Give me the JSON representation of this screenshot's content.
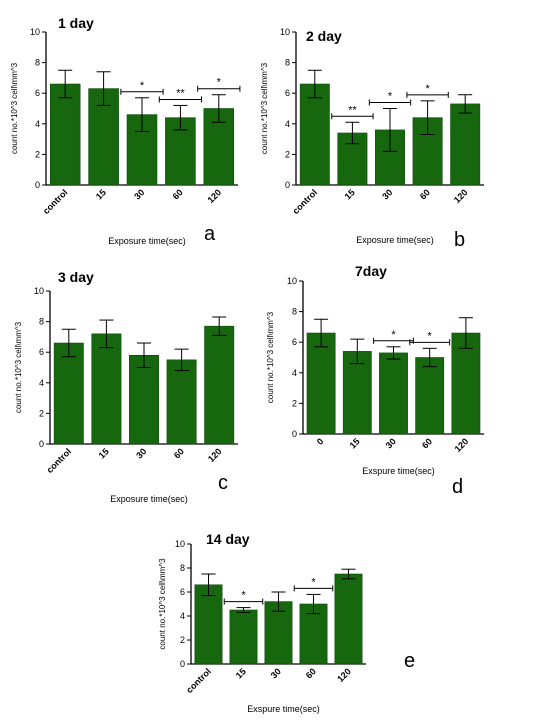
{
  "colors": {
    "bar": "#17670f",
    "bar_edge": "#0b4a08",
    "axis": "#000000"
  },
  "chart_data": [
    {
      "type": "bar",
      "title": "1 day",
      "panel_label": "a",
      "categories": [
        "control",
        "15",
        "30",
        "60",
        "120"
      ],
      "values": [
        6.6,
        6.3,
        4.6,
        4.4,
        5.0
      ],
      "errors": [
        0.9,
        1.1,
        1.1,
        0.8,
        0.9
      ],
      "significance": [
        {
          "cat": 2,
          "mark": "*"
        },
        {
          "cat": 3,
          "mark": "**"
        },
        {
          "cat": 4,
          "mark": "*"
        }
      ],
      "ylim": [
        0,
        10
      ],
      "yticks": [
        0,
        2,
        4,
        6,
        8,
        10
      ],
      "ylabel": "count no.*10^3 cell\\mm^3",
      "xlabel": "Exposure time(sec)"
    },
    {
      "type": "bar",
      "title": "2 day",
      "panel_label": "b",
      "categories": [
        "control",
        "15",
        "30",
        "60",
        "120"
      ],
      "values": [
        6.6,
        3.4,
        3.6,
        4.4,
        5.3
      ],
      "errors": [
        0.9,
        0.7,
        1.4,
        1.1,
        0.6
      ],
      "significance": [
        {
          "cat": 1,
          "mark": "**"
        },
        {
          "cat": 2,
          "mark": "*"
        },
        {
          "cat": 3,
          "mark": "*"
        }
      ],
      "ylim": [
        0,
        10
      ],
      "yticks": [
        0,
        2,
        4,
        6,
        8,
        10
      ],
      "ylabel": "count no.*10^3 cell\\mm^3",
      "xlabel": "Exposure time(sec)"
    },
    {
      "type": "bar",
      "title": "3 day",
      "panel_label": "c",
      "categories": [
        "control",
        "15",
        "30",
        "60",
        "120"
      ],
      "values": [
        6.6,
        7.2,
        5.8,
        5.5,
        7.7
      ],
      "errors": [
        0.9,
        0.9,
        0.8,
        0.7,
        0.6
      ],
      "significance": [],
      "ylim": [
        0,
        10
      ],
      "yticks": [
        0,
        2,
        4,
        6,
        8,
        10
      ],
      "ylabel": "count no.*10^3 cell\\mm^3",
      "xlabel": "Exposure time(sec)"
    },
    {
      "type": "bar",
      "title": "7day",
      "panel_label": "d",
      "categories": [
        "0",
        "15",
        "30",
        "60",
        "120"
      ],
      "values": [
        6.6,
        5.4,
        5.3,
        5.0,
        6.6
      ],
      "errors": [
        0.9,
        0.8,
        0.4,
        0.6,
        1.0
      ],
      "significance": [
        {
          "cat": 2,
          "mark": "*"
        },
        {
          "cat": 3,
          "mark": "*"
        }
      ],
      "ylim": [
        0,
        10
      ],
      "yticks": [
        0,
        2,
        4,
        6,
        8,
        10
      ],
      "ylabel": "count no.*10^3 cell\\mm^3",
      "xlabel": "Exspure time(sec)"
    },
    {
      "type": "bar",
      "title": "14 day",
      "panel_label": "e",
      "categories": [
        "control",
        "15",
        "30",
        "60",
        "120"
      ],
      "values": [
        6.6,
        4.5,
        5.2,
        5.0,
        7.5
      ],
      "errors": [
        0.9,
        0.2,
        0.8,
        0.8,
        0.4
      ],
      "significance": [
        {
          "cat": 1,
          "mark": "*"
        },
        {
          "cat": 3,
          "mark": "*"
        }
      ],
      "ylim": [
        0,
        10
      ],
      "yticks": [
        0,
        2,
        4,
        6,
        8,
        10
      ],
      "ylabel": "count no.*10^3 cell\\mm^3",
      "xlabel": "Exspure time(sec)"
    }
  ]
}
